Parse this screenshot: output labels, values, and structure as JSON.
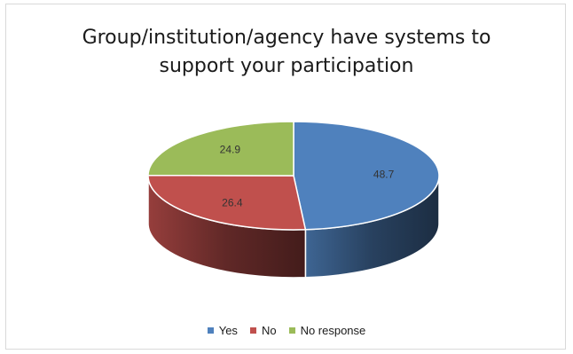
{
  "chart_data": {
    "type": "pie",
    "title_lines": [
      "Group/institution/agency have systems to",
      "support your participation"
    ],
    "categories": [
      "Yes",
      "No",
      "No response"
    ],
    "values": [
      48.7,
      26.4,
      24.9
    ],
    "data_labels": [
      "48.7",
      "26.4",
      "24.9"
    ],
    "colors": [
      "#4f81bd",
      "#c0504d",
      "#9bbb59"
    ],
    "legend_placement": "bottom",
    "style": "3d"
  }
}
